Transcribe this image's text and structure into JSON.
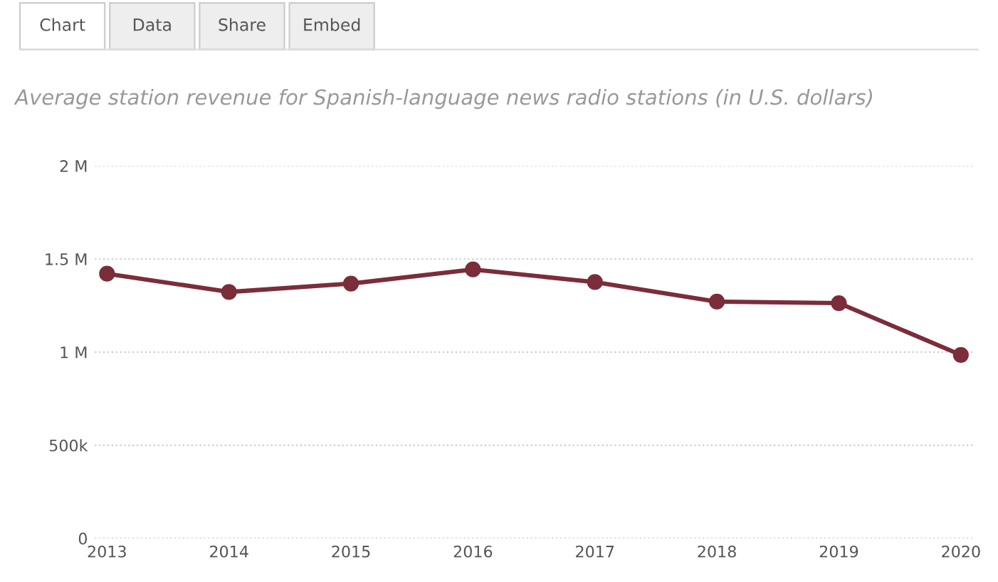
{
  "chart_data": {
    "type": "line",
    "title": "Average station revenue for Spanish-language news radio stations (in U.S. dollars)",
    "annotations": [
      "Chart",
      "Data",
      "Share",
      "Embed"
    ],
    "categories": [
      "2013",
      "2014",
      "2015",
      "2016",
      "2017",
      "2018",
      "2019",
      "2020"
    ],
    "series": [
      {
        "color": "#7b2d3a",
        "values": [
          1421000,
          1323000,
          1368000,
          1444000,
          1376000,
          1271000,
          1263000,
          985000
        ]
      }
    ],
    "ylim": [
      0,
      2000000
    ],
    "yticks": [
      {
        "value": 0,
        "label": "0"
      },
      {
        "value": 500000,
        "label": "500k"
      },
      {
        "value": 1000000,
        "label": "1 M"
      },
      {
        "value": 1500000,
        "label": "1.5 M"
      },
      {
        "value": 2000000,
        "label": "2 M"
      }
    ],
    "grid": "y",
    "legend": false,
    "marker": "circle",
    "line_style": "solid"
  }
}
